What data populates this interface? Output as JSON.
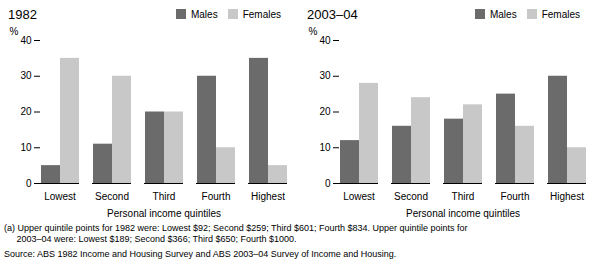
{
  "chart_data": [
    {
      "type": "bar",
      "title": "1982",
      "categories": [
        "Lowest",
        "Second",
        "Third",
        "Fourth",
        "Highest"
      ],
      "series": [
        {
          "name": "Males",
          "color": "#6b6b6b",
          "values": [
            5,
            11,
            20,
            30,
            35
          ]
        },
        {
          "name": "Females",
          "color": "#c8c8c8",
          "values": [
            35,
            30,
            20,
            10,
            5
          ]
        }
      ],
      "xlabel": "Personal income quintiles",
      "ylabel": "%",
      "ylim": [
        0,
        40
      ],
      "yticks": [
        0,
        10,
        20,
        30,
        40
      ],
      "grid": false,
      "legend": "upper right"
    },
    {
      "type": "bar",
      "title": "2003–04",
      "categories": [
        "Lowest",
        "Second",
        "Third",
        "Fourth",
        "Highest"
      ],
      "series": [
        {
          "name": "Males",
          "color": "#6b6b6b",
          "values": [
            12,
            16,
            18,
            25,
            30
          ]
        },
        {
          "name": "Females",
          "color": "#c8c8c8",
          "values": [
            28,
            24,
            22,
            16,
            10
          ]
        }
      ],
      "xlabel": "Personal income quintiles",
      "ylabel": "%",
      "ylim": [
        0,
        40
      ],
      "yticks": [
        0,
        10,
        20,
        30,
        40
      ],
      "grid": false,
      "legend": "upper right"
    }
  ],
  "footnotes": [
    "(a) Upper quintile points for 1982 were: Lowest $92; Second $259; Third $601; Fourth $834. Upper quintile points for",
    "     2003–04 were: Lowest $189; Second $366; Third $650; Fourth $1000."
  ],
  "source": "Source: ABS 1982 Income and Housing Survey and ABS 2003–04 Survey of Income and Housing."
}
